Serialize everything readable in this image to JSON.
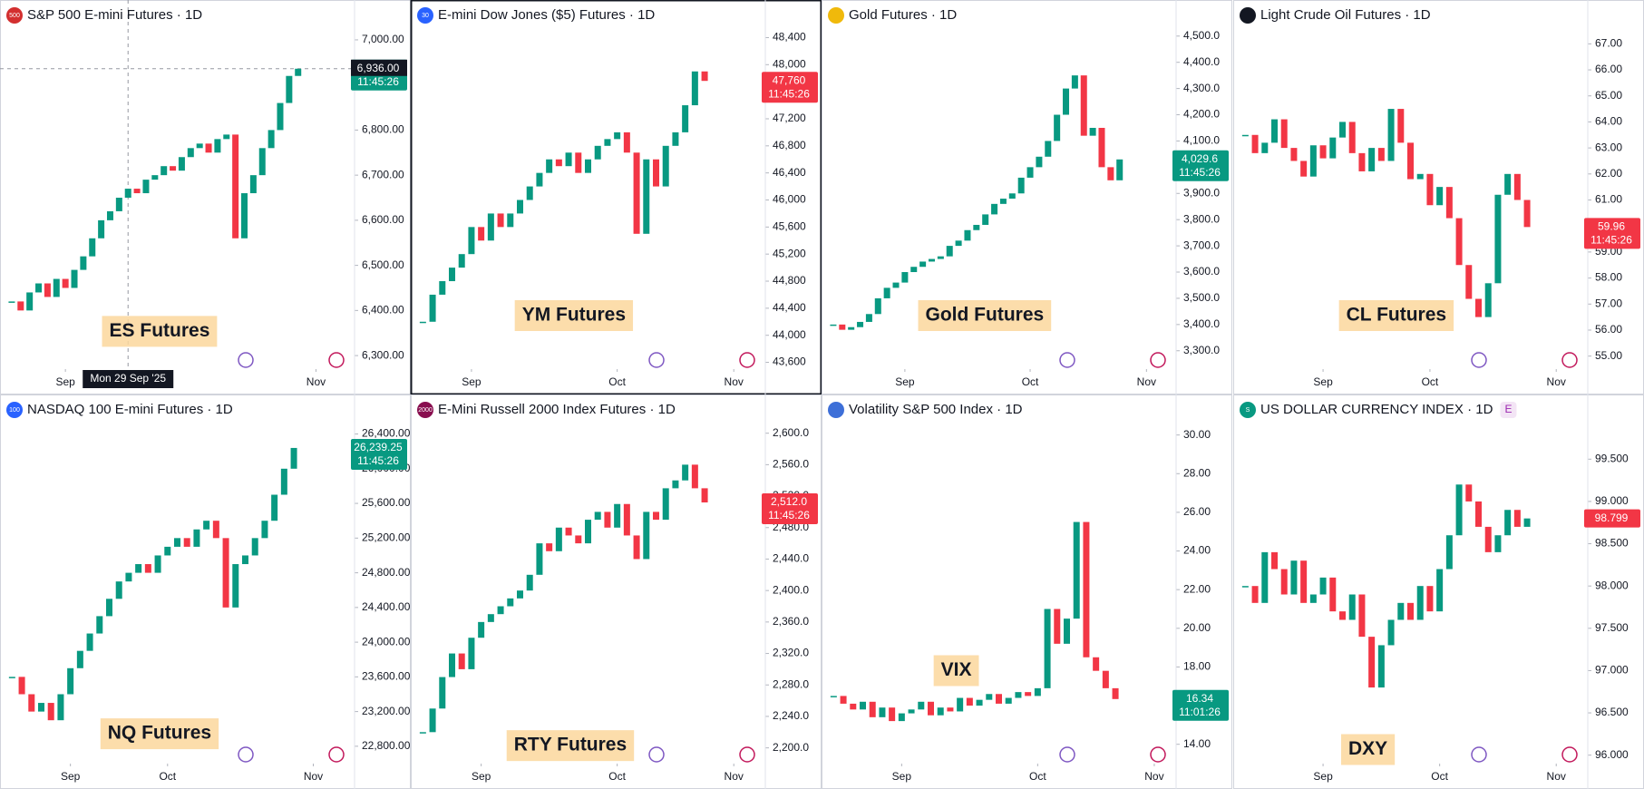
{
  "chart_data": [
    {
      "type": "candlestick",
      "title": "S&P 500 E-mini Futures · 1D",
      "badge": "500",
      "badge_color": "#d32f2f",
      "annotation": "ES Futures",
      "values": [
        6420,
        6400,
        6440,
        6460,
        6430,
        6470,
        6450,
        6490,
        6520,
        6560,
        6600,
        6620,
        6650,
        6670,
        6660,
        6690,
        6700,
        6720,
        6710,
        6740,
        6760,
        6770,
        6750,
        6780,
        6790,
        6560,
        6660,
        6700,
        6760,
        6800,
        6860,
        6920,
        6936
      ],
      "ylim": [
        6270,
        7020
      ],
      "yticks": [
        {
          "value": 6300,
          "label": "6,300.00"
        },
        {
          "value": 6400,
          "label": "6,400.00"
        },
        {
          "value": 6500,
          "label": "6,500.00"
        },
        {
          "value": 6600,
          "label": "6,600.00"
        },
        {
          "value": 6700,
          "label": "6,700.00"
        },
        {
          "value": 6800,
          "label": "6,800.00"
        },
        {
          "value": 6900,
          "label": "6,900.00"
        },
        {
          "value": 7000,
          "label": "7,000.00"
        }
      ],
      "xticks": [
        {
          "value": 6,
          "label": "Sep"
        },
        {
          "value": 34,
          "label": "Nov"
        }
      ],
      "last_price": 6936,
      "last_label": "6,936.00",
      "countdown": "11:45:26",
      "last_color": "#089981",
      "crosshair_x": 13,
      "crosshair_date": "Mon 29 Sep '25"
    },
    {
      "type": "candlestick",
      "title": "E-mini Dow Jones ($5) Futures · 1D",
      "badge": "30",
      "badge_color": "#2962ff",
      "annotation": "YM Futures",
      "values": [
        44200,
        44600,
        44800,
        45000,
        45200,
        45600,
        45400,
        45800,
        45600,
        45800,
        46000,
        46200,
        46400,
        46600,
        46500,
        46700,
        46400,
        46600,
        46800,
        46900,
        47000,
        46700,
        45500,
        46600,
        46200,
        46800,
        47000,
        47400,
        47900,
        47760
      ],
      "ylim": [
        43500,
        48500
      ],
      "yticks": [
        {
          "value": 43600,
          "label": "43,600"
        },
        {
          "value": 44000,
          "label": "44,000"
        },
        {
          "value": 44400,
          "label": "44,400"
        },
        {
          "value": 44800,
          "label": "44,800"
        },
        {
          "value": 45200,
          "label": "45,200"
        },
        {
          "value": 45600,
          "label": "45,600"
        },
        {
          "value": 46000,
          "label": "46,000"
        },
        {
          "value": 46400,
          "label": "46,400"
        },
        {
          "value": 46800,
          "label": "46,800"
        },
        {
          "value": 47200,
          "label": "47,200"
        },
        {
          "value": 47600,
          "label": "47,600"
        },
        {
          "value": 48000,
          "label": "48,000"
        },
        {
          "value": 48400,
          "label": "48,400"
        }
      ],
      "xticks": [
        {
          "value": 5,
          "label": "Sep"
        },
        {
          "value": 20,
          "label": "Oct"
        },
        {
          "value": 32,
          "label": "Nov"
        }
      ],
      "last_price": 47760,
      "last_label": "47,760",
      "countdown": "11:45:26",
      "last_color": "#f23645"
    },
    {
      "type": "candlestick",
      "title": "Gold Futures · 1D",
      "annotation": "Gold Futures",
      "values": [
        3400,
        3380,
        3390,
        3410,
        3440,
        3500,
        3540,
        3560,
        3600,
        3620,
        3640,
        3650,
        3660,
        3700,
        3720,
        3760,
        3780,
        3820,
        3860,
        3880,
        3900,
        3960,
        4000,
        4040,
        4100,
        4200,
        4300,
        4350,
        4120,
        4150,
        4000,
        3950,
        4029.6
      ],
      "ylim": [
        3230,
        4520
      ],
      "yticks": [
        {
          "value": 3300,
          "label": "3,300.0"
        },
        {
          "value": 3400,
          "label": "3,400.0"
        },
        {
          "value": 3500,
          "label": "3,500.0"
        },
        {
          "value": 3600,
          "label": "3,600.0"
        },
        {
          "value": 3700,
          "label": "3,700.0"
        },
        {
          "value": 3800,
          "label": "3,800.0"
        },
        {
          "value": 3900,
          "label": "3,900.0"
        },
        {
          "value": 4000,
          "label": "4,000.0"
        },
        {
          "value": 4100,
          "label": "4,100.0"
        },
        {
          "value": 4200,
          "label": "4,200.0"
        },
        {
          "value": 4300,
          "label": "4,300.0"
        },
        {
          "value": 4400,
          "label": "4,400.0"
        },
        {
          "value": 4500,
          "label": "4,500.0"
        }
      ],
      "xticks": [
        {
          "value": 8,
          "label": "Sep"
        },
        {
          "value": 22,
          "label": "Oct"
        },
        {
          "value": 35,
          "label": "Nov"
        }
      ],
      "last_price": 4029.6,
      "last_label": "4,029.6",
      "countdown": "11:45:26",
      "last_color": "#089981"
    },
    {
      "type": "candlestick",
      "title": "Light Crude Oil Futures · 1D",
      "annotation": "CL Futures",
      "values": [
        63.5,
        62.8,
        63.2,
        64.1,
        63.0,
        62.5,
        61.9,
        63.1,
        62.6,
        63.4,
        64.0,
        62.8,
        62.1,
        63.0,
        62.5,
        64.5,
        63.2,
        61.8,
        62.0,
        60.8,
        61.5,
        60.3,
        58.5,
        57.2,
        56.5,
        57.8,
        61.2,
        62.0,
        61.0,
        59.96
      ],
      "ylim": [
        54.5,
        67.5
      ],
      "yticks": [
        {
          "value": 55,
          "label": "55.00"
        },
        {
          "value": 56,
          "label": "56.00"
        },
        {
          "value": 57,
          "label": "57.00"
        },
        {
          "value": 58,
          "label": "58.00"
        },
        {
          "value": 59,
          "label": "59.00"
        },
        {
          "value": 60,
          "label": "60.00"
        },
        {
          "value": 61,
          "label": "61.00"
        },
        {
          "value": 62,
          "label": "62.00"
        },
        {
          "value": 63,
          "label": "63.00"
        },
        {
          "value": 64,
          "label": "64.00"
        },
        {
          "value": 65,
          "label": "65.00"
        },
        {
          "value": 66,
          "label": "66.00"
        },
        {
          "value": 67,
          "label": "67.00"
        }
      ],
      "xticks": [
        {
          "value": 8,
          "label": "Sep"
        },
        {
          "value": 19,
          "label": "Oct"
        },
        {
          "value": 32,
          "label": "Nov"
        }
      ],
      "last_price": 59.96,
      "last_label": "59.96",
      "countdown": "11:45:26",
      "last_color": "#f23645"
    },
    {
      "type": "candlestick",
      "title": "NASDAQ 100 E-mini Futures · 1D",
      "badge": "100",
      "badge_color": "#2962ff",
      "annotation": "NQ Futures",
      "values": [
        23600,
        23400,
        23200,
        23300,
        23100,
        23400,
        23700,
        23900,
        24100,
        24300,
        24500,
        24700,
        24800,
        24900,
        24800,
        25000,
        25100,
        25200,
        25100,
        25300,
        25400,
        25200,
        24400,
        24900,
        25000,
        25200,
        25400,
        25700,
        26000,
        26239.25
      ],
      "ylim": [
        22600,
        26500
      ],
      "yticks": [
        {
          "value": 22800,
          "label": "22,800.00"
        },
        {
          "value": 23200,
          "label": "23,200.00"
        },
        {
          "value": 23600,
          "label": "23,600.00"
        },
        {
          "value": 24000,
          "label": "24,000.00"
        },
        {
          "value": 24400,
          "label": "24,400.00"
        },
        {
          "value": 24800,
          "label": "24,800.00"
        },
        {
          "value": 25200,
          "label": "25,200.00"
        },
        {
          "value": 25600,
          "label": "25,600.00"
        },
        {
          "value": 26000,
          "label": "26,000.00"
        },
        {
          "value": 26400,
          "label": "26,400.00"
        }
      ],
      "xticks": [
        {
          "value": 6,
          "label": "Sep"
        },
        {
          "value": 16,
          "label": "Oct"
        },
        {
          "value": 31,
          "label": "Nov"
        }
      ],
      "last_price": 26239.25,
      "last_label": "26,239.25",
      "countdown": "11:45:26",
      "last_color": "#089981"
    },
    {
      "type": "candlestick",
      "title": "E-Mini Russell 2000 Index Futures · 1D",
      "badge": "2000",
      "badge_color": "#880e4f",
      "annotation": "RTY Futures",
      "values": [
        2220,
        2250,
        2290,
        2320,
        2300,
        2340,
        2360,
        2370,
        2380,
        2390,
        2400,
        2420,
        2460,
        2450,
        2480,
        2470,
        2460,
        2490,
        2500,
        2480,
        2510,
        2470,
        2440,
        2500,
        2490,
        2530,
        2540,
        2560,
        2530,
        2512
      ],
      "ylim": [
        2180,
        2610
      ],
      "yticks": [
        {
          "value": 2200,
          "label": "2,200.0"
        },
        {
          "value": 2240,
          "label": "2,240.0"
        },
        {
          "value": 2280,
          "label": "2,280.0"
        },
        {
          "value": 2320,
          "label": "2,320.0"
        },
        {
          "value": 2360,
          "label": "2,360.0"
        },
        {
          "value": 2400,
          "label": "2,400.0"
        },
        {
          "value": 2440,
          "label": "2,440.0"
        },
        {
          "value": 2480,
          "label": "2,480.0"
        },
        {
          "value": 2520,
          "label": "2,520.0"
        },
        {
          "value": 2560,
          "label": "2,560.0"
        },
        {
          "value": 2600,
          "label": "2,600.0"
        }
      ],
      "xticks": [
        {
          "value": 6,
          "label": "Sep"
        },
        {
          "value": 20,
          "label": "Oct"
        },
        {
          "value": 32,
          "label": "Nov"
        }
      ],
      "last_price": 2512,
      "last_label": "2,512.0",
      "countdown": "11:45:26",
      "last_color": "#f23645"
    },
    {
      "type": "candlestick",
      "title": "Volatility S&P 500 Index · 1D",
      "annotation": "VIX",
      "values": [
        16.5,
        16.1,
        15.8,
        16.2,
        15.4,
        15.9,
        15.2,
        15.6,
        15.8,
        16.2,
        15.5,
        15.9,
        15.7,
        16.4,
        16.0,
        16.3,
        16.6,
        16.1,
        16.4,
        16.7,
        16.5,
        16.9,
        21.0,
        19.2,
        20.5,
        25.5,
        18.5,
        17.8,
        16.9,
        16.34
      ],
      "ylim": [
        13,
        30.5
      ],
      "yticks": [
        {
          "value": 14,
          "label": "14.00"
        },
        {
          "value": 16,
          "label": "16.00"
        },
        {
          "value": 18,
          "label": "18.00"
        },
        {
          "value": 20,
          "label": "20.00"
        },
        {
          "value": 22,
          "label": "22.00"
        },
        {
          "value": 24,
          "label": "24.00"
        },
        {
          "value": 26,
          "label": "26.00"
        },
        {
          "value": 28,
          "label": "28.00"
        },
        {
          "value": 30,
          "label": "30.00"
        }
      ],
      "xticks": [
        {
          "value": 7,
          "label": "Sep"
        },
        {
          "value": 21,
          "label": "Oct"
        },
        {
          "value": 33,
          "label": "Nov"
        }
      ],
      "last_price": 16.34,
      "last_label": "16.34",
      "countdown": "11:01:26",
      "last_color": "#089981"
    },
    {
      "type": "candlestick",
      "title": "US DOLLAR CURRENCY INDEX · 1D",
      "badge": "S",
      "badge_color": "#089981",
      "extra_badge": "E",
      "annotation": "DXY",
      "values": [
        98.0,
        97.8,
        98.4,
        98.2,
        97.9,
        98.3,
        97.8,
        97.9,
        98.1,
        97.7,
        97.6,
        97.9,
        97.4,
        96.8,
        97.3,
        97.6,
        97.8,
        97.6,
        98.0,
        97.7,
        98.2,
        98.6,
        99.2,
        99.0,
        98.7,
        98.4,
        98.6,
        98.9,
        98.7,
        98.799
      ],
      "ylim": [
        95.9,
        99.9
      ],
      "yticks": [
        {
          "value": 96,
          "label": "96.000"
        },
        {
          "value": 96.5,
          "label": "96.500"
        },
        {
          "value": 97,
          "label": "97.000"
        },
        {
          "value": 97.5,
          "label": "97.500"
        },
        {
          "value": 98,
          "label": "98.000"
        },
        {
          "value": 98.5,
          "label": "98.500"
        },
        {
          "value": 99,
          "label": "99.000"
        },
        {
          "value": 99.5,
          "label": "99.500"
        }
      ],
      "xticks": [
        {
          "value": 8,
          "label": "Sep"
        },
        {
          "value": 20,
          "label": "Oct"
        },
        {
          "value": 32,
          "label": "Nov"
        }
      ],
      "last_price": 98.799,
      "last_label": "98.799",
      "last_color": "#f23645"
    }
  ]
}
